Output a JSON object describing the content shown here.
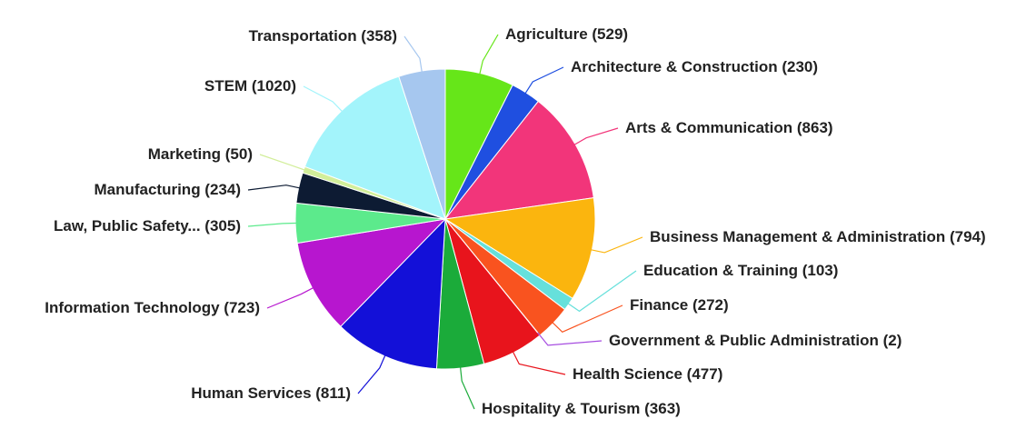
{
  "chart_data": {
    "type": "pie",
    "title": "",
    "slices": [
      {
        "label": "Agriculture",
        "value": 529,
        "text": "Agriculture (529)",
        "color": "#66e619"
      },
      {
        "label": "Architecture & Construction",
        "value": 230,
        "text": "Architecture & Construction (230)",
        "color": "#1f4fe0"
      },
      {
        "label": "Arts & Communication",
        "value": 863,
        "text": "Arts & Communication (863)",
        "color": "#f2357a"
      },
      {
        "label": "Business Management & Administration",
        "value": 794,
        "text": "Business Management & Administration (794)",
        "color": "#fbb50e"
      },
      {
        "label": "Education & Training",
        "value": 103,
        "text": "Education & Training (103)",
        "color": "#66e0db"
      },
      {
        "label": "Finance",
        "value": 272,
        "text": "Finance (272)",
        "color": "#f9531f"
      },
      {
        "label": "Government & Public Administration",
        "value": 2,
        "text": "Government & Public Administration (2)",
        "color": "#a64ce0"
      },
      {
        "label": "Health Science",
        "value": 477,
        "text": "Health Science (477)",
        "color": "#e8141c"
      },
      {
        "label": "Hospitality & Tourism",
        "value": 363,
        "text": "Hospitality & Tourism (363)",
        "color": "#1bab3a"
      },
      {
        "label": "Human Services",
        "value": 811,
        "text": "Human Services (811)",
        "color": "#1310d8"
      },
      {
        "label": "Information Technology",
        "value": 723,
        "text": "Information Technology (723)",
        "color": "#b716cf"
      },
      {
        "label": "Law, Public Safety...",
        "value": 305,
        "text": "Law, Public Safety... (305)",
        "color": "#5cea8c"
      },
      {
        "label": "Manufacturing",
        "value": 234,
        "text": "Manufacturing (234)",
        "color": "#0d1b33"
      },
      {
        "label": "Marketing",
        "value": 50,
        "text": "Marketing (50)",
        "color": "#d2ee9a"
      },
      {
        "label": "STEM",
        "value": 1020,
        "text": "STEM (1020)",
        "color": "#a3f4fb"
      },
      {
        "label": "Transportation",
        "value": 358,
        "text": "Transportation (358)",
        "color": "#a6c7ef"
      }
    ],
    "legend": "none",
    "labels": "outside with leader lines"
  }
}
